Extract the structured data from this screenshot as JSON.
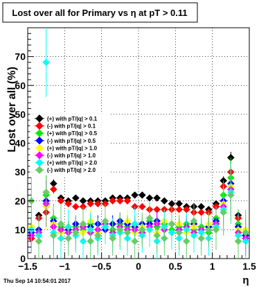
{
  "chart_data": {
    "type": "scatter",
    "title": "Lost over all for Primary vs   η at pT > 0.11",
    "xlabel": "η",
    "ylabel": "Lost over all (%)",
    "footer": "Thu Sep 14 10:54:01 2017",
    "xlim": [
      -1.5,
      1.5
    ],
    "ylim": [
      0,
      80
    ],
    "xticks": [
      "−1.5",
      "−1",
      "−0.5",
      "0",
      "0.5",
      "1",
      "1.5"
    ],
    "yticks": [
      "0",
      "10",
      "20",
      "30",
      "40",
      "50",
      "60",
      "70"
    ],
    "grid": true,
    "legend_position": "left-middle",
    "legend": [
      {
        "label": "(+) with pT/|q| > 0.1",
        "color": "#000000"
      },
      {
        "label": "(-) with pT/|q| > 0.1",
        "color": "#ff0000"
      },
      {
        "label": "(+) with pT/|q| > 0.5",
        "color": "#00ee00"
      },
      {
        "label": "(-) with pT/|q| > 0.5",
        "color": "#0000ff"
      },
      {
        "label": "(+) with pT/|q| > 1.0",
        "color": "#ffff00"
      },
      {
        "label": "(-) with pT/|q| > 1.0",
        "color": "#ff00ff"
      },
      {
        "label": "(+) with pT/|q| > 2.0",
        "color": "#00ffff"
      },
      {
        "label": "(-) with pT/|q| > 2.0",
        "color": "#66cc66"
      }
    ],
    "series": [
      {
        "color": "#000000",
        "marker": "diamond",
        "x": [
          -1.45,
          -1.35,
          -1.25,
          -1.15,
          -1.05,
          -0.95,
          -0.85,
          -0.75,
          -0.65,
          -0.55,
          -0.45,
          -0.35,
          -0.25,
          -0.15,
          -0.05,
          0.05,
          0.15,
          0.25,
          0.35,
          0.45,
          0.55,
          0.65,
          0.75,
          0.85,
          0.95,
          1.05,
          1.15,
          1.25,
          1.35,
          1.45
        ],
        "y": [
          8,
          15,
          18,
          26,
          21,
          20,
          21,
          20,
          20,
          20,
          20,
          21,
          21,
          21,
          22,
          22,
          21,
          21,
          20,
          19,
          19,
          18,
          18,
          18,
          17,
          19,
          27,
          35,
          15,
          8
        ],
        "err": [
          1.5,
          1.2,
          2,
          1.5,
          1,
          0.8,
          0.7,
          0.7,
          0.6,
          0.6,
          0.6,
          0.6,
          0.6,
          0.6,
          0.6,
          0.6,
          0.6,
          0.6,
          0.6,
          0.6,
          0.6,
          0.6,
          0.7,
          0.7,
          0.8,
          1,
          1.5,
          2,
          2,
          2
        ]
      },
      {
        "color": "#ff0000",
        "marker": "diamond",
        "x": [
          -1.45,
          -1.35,
          -1.25,
          -1.15,
          -1.05,
          -0.95,
          -0.85,
          -0.75,
          -0.65,
          -0.55,
          -0.45,
          -0.35,
          -0.25,
          -0.15,
          -0.05,
          0.05,
          0.15,
          0.25,
          0.35,
          0.45,
          0.55,
          0.65,
          0.75,
          0.85,
          0.95,
          1.05,
          1.15,
          1.25,
          1.35,
          1.45
        ],
        "y": [
          7,
          14,
          16,
          24,
          20,
          19,
          18,
          18,
          19,
          19,
          19,
          20,
          20,
          20,
          18,
          18,
          17,
          17,
          17,
          17,
          17,
          17,
          16,
          16,
          16,
          18,
          25,
          30,
          14,
          7
        ],
        "err": [
          1.5,
          1.2,
          2,
          1.5,
          1,
          0.8,
          0.7,
          0.7,
          0.6,
          0.6,
          0.6,
          0.6,
          0.6,
          0.6,
          0.6,
          0.6,
          0.6,
          0.6,
          0.6,
          0.6,
          0.6,
          0.6,
          0.7,
          0.7,
          0.8,
          1,
          1.5,
          2,
          2,
          2
        ]
      },
      {
        "color": "#00ee00",
        "marker": "diamond",
        "x": [
          -1.45,
          -1.35,
          -1.25,
          -1.15,
          -1.05,
          -0.95,
          -0.85,
          -0.75,
          -0.65,
          -0.55,
          -0.45,
          -0.35,
          -0.25,
          -0.15,
          -0.05,
          0.05,
          0.15,
          0.25,
          0.35,
          0.45,
          0.55,
          0.65,
          0.75,
          0.85,
          0.95,
          1.05,
          1.15,
          1.25,
          1.35,
          1.45
        ],
        "y": [
          10,
          9,
          22,
          14,
          11,
          9,
          11,
          10,
          12,
          10,
          11,
          10,
          12,
          11,
          12,
          10,
          13,
          11,
          12,
          10,
          11,
          12,
          10,
          11,
          9,
          14,
          22,
          28,
          12,
          9
        ],
        "err": [
          5,
          4,
          7,
          5,
          4,
          3,
          3,
          3,
          3,
          3,
          3,
          3,
          3,
          3,
          3,
          3,
          3,
          3,
          3,
          3,
          3,
          3,
          3,
          3,
          3,
          4,
          5,
          7,
          5,
          5
        ]
      },
      {
        "color": "#0000ff",
        "marker": "diamond",
        "x": [
          -1.45,
          -1.35,
          -1.25,
          -1.15,
          -1.05,
          -0.95,
          -0.85,
          -0.75,
          -0.65,
          -0.55,
          -0.45,
          -0.35,
          -0.25,
          -0.15,
          -0.05,
          0.05,
          0.15,
          0.25,
          0.35,
          0.45,
          0.55,
          0.65,
          0.75,
          0.85,
          0.95,
          1.05,
          1.15,
          1.25,
          1.35,
          1.45
        ],
        "y": [
          9,
          10,
          20,
          13,
          10,
          10,
          12,
          11,
          11,
          12,
          10,
          12,
          13,
          12,
          11,
          12,
          12,
          13,
          11,
          12,
          10,
          11,
          12,
          10,
          11,
          13,
          20,
          26,
          11,
          8
        ],
        "err": [
          5,
          4,
          7,
          5,
          4,
          3,
          3,
          3,
          3,
          3,
          3,
          3,
          3,
          3,
          3,
          3,
          3,
          3,
          3,
          3,
          3,
          3,
          3,
          3,
          3,
          4,
          5,
          7,
          5,
          5
        ]
      },
      {
        "color": "#ffff00",
        "marker": "diamond",
        "x": [
          -1.45,
          -1.35,
          -1.25,
          -1.15,
          -1.05,
          -0.95,
          -0.85,
          -0.75,
          -0.65,
          -0.55,
          -0.45,
          -0.35,
          -0.25,
          -0.15,
          -0.05,
          0.05,
          0.15,
          0.25,
          0.35,
          0.45,
          0.55,
          0.65,
          0.75,
          0.85,
          0.95,
          1.05,
          1.15,
          1.25,
          1.35,
          1.45
        ],
        "y": [
          11,
          8,
          18,
          12,
          9,
          11,
          10,
          9,
          13,
          9,
          12,
          9,
          10,
          13,
          9,
          11,
          10,
          9,
          13,
          9,
          12,
          9,
          11,
          9,
          12,
          12,
          19,
          25,
          10,
          10
        ],
        "err": [
          6,
          5,
          8,
          6,
          5,
          4,
          4,
          4,
          4,
          4,
          4,
          4,
          4,
          4,
          4,
          4,
          4,
          4,
          4,
          4,
          4,
          4,
          4,
          4,
          4,
          5,
          6,
          8,
          6,
          6
        ]
      },
      {
        "color": "#ff00ff",
        "marker": "diamond",
        "x": [
          -1.45,
          -1.35,
          -1.25,
          -1.15,
          -1.05,
          -0.95,
          -0.85,
          -0.75,
          -0.65,
          -0.55,
          -0.45,
          -0.35,
          -0.25,
          -0.15,
          -0.05,
          0.05,
          0.15,
          0.25,
          0.35,
          0.45,
          0.55,
          0.65,
          0.75,
          0.85,
          0.95,
          1.05,
          1.15,
          1.25,
          1.35,
          1.45
        ],
        "y": [
          8,
          9,
          19,
          11,
          10,
          9,
          10,
          11,
          9,
          10,
          12,
          9,
          11,
          10,
          10,
          9,
          11,
          12,
          10,
          9,
          10,
          11,
          9,
          10,
          10,
          12,
          18,
          24,
          9,
          7
        ],
        "err": [
          6,
          5,
          8,
          6,
          5,
          4,
          4,
          4,
          4,
          4,
          4,
          4,
          4,
          4,
          4,
          4,
          4,
          4,
          4,
          4,
          4,
          4,
          4,
          4,
          4,
          5,
          6,
          8,
          6,
          6
        ]
      },
      {
        "color": "#00ffff",
        "marker": "diamond",
        "x": [
          -1.45,
          -1.35,
          -1.25,
          -1.15,
          -1.05,
          -0.95,
          -0.85,
          -0.75,
          -0.65,
          -0.55,
          -0.45,
          -0.35,
          -0.25,
          -0.15,
          -0.05,
          0.05,
          0.15,
          0.25,
          0.35,
          0.45,
          0.55,
          0.65,
          0.75,
          0.85,
          0.95,
          1.05,
          1.15,
          1.25,
          1.35,
          1.45
        ],
        "y": [
          10,
          8,
          68,
          9,
          7,
          11,
          8,
          6,
          10,
          7,
          11,
          8,
          9,
          7,
          12,
          8,
          10,
          6,
          11,
          9,
          7,
          10,
          8,
          9,
          7,
          11,
          17,
          23,
          8,
          6
        ],
        "err": [
          8,
          7,
          12,
          8,
          7,
          6,
          6,
          6,
          6,
          6,
          6,
          6,
          6,
          6,
          6,
          6,
          6,
          6,
          6,
          6,
          6,
          6,
          6,
          6,
          6,
          7,
          8,
          10,
          8,
          8
        ]
      },
      {
        "color": "#66cc66",
        "marker": "diamond",
        "x": [
          -1.45,
          -1.35,
          -1.25,
          -1.15,
          -1.05,
          -0.95,
          -0.85,
          -0.75,
          -0.65,
          -0.55,
          -0.45,
          -0.35,
          -0.25,
          -0.15,
          -0.05,
          0.05,
          0.15,
          0.25,
          0.35,
          0.45,
          0.55,
          0.65,
          0.75,
          0.85,
          0.95,
          1.05,
          1.15,
          1.25,
          1.35,
          1.45
        ],
        "y": [
          20,
          6,
          23,
          8,
          12,
          7,
          9,
          12,
          6,
          8,
          13,
          7,
          10,
          9,
          6,
          10,
          14,
          8,
          7,
          12,
          9,
          6,
          13,
          7,
          10,
          10,
          16,
          22,
          6,
          9
        ],
        "err": [
          8,
          7,
          12,
          8,
          7,
          6,
          6,
          6,
          6,
          6,
          6,
          6,
          6,
          6,
          6,
          6,
          6,
          6,
          6,
          6,
          6,
          6,
          6,
          6,
          6,
          7,
          8,
          10,
          8,
          8
        ]
      }
    ]
  }
}
